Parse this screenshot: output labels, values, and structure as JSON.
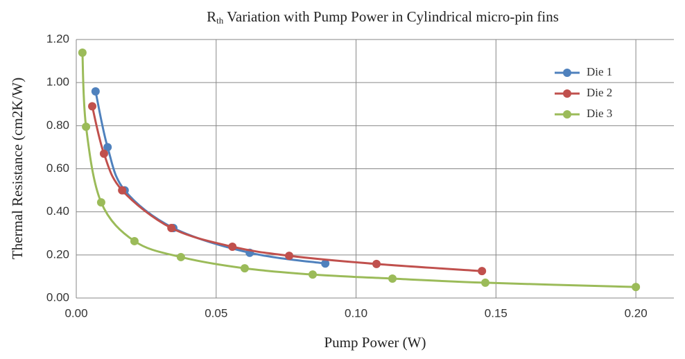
{
  "chart_data": {
    "type": "scatter",
    "title": {
      "main": "R",
      "subscript": "th",
      "rest": " Variation with Pump Power in Cylindrical micro-pin fins"
    },
    "x_label": "Pump Power (W)",
    "y_label": "Thermal Resistance (cm2K/W)",
    "xlim": [
      0,
      0.2136
    ],
    "ylim": [
      0,
      1.2
    ],
    "xticks": [
      {
        "value": 0,
        "label": "0.00"
      },
      {
        "value": 0.05,
        "label": "0.05"
      },
      {
        "value": 0.1,
        "label": "0.10"
      },
      {
        "value": 0.15,
        "label": "0.15"
      },
      {
        "value": 0.2,
        "label": "0.20"
      }
    ],
    "yticks": [
      {
        "value": 0,
        "label": "0.00"
      },
      {
        "value": 0.2,
        "label": "0.20"
      },
      {
        "value": 0.4,
        "label": "0.40"
      },
      {
        "value": 0.6,
        "label": "0.60"
      },
      {
        "value": 0.8,
        "label": "0.80"
      },
      {
        "value": 1.0,
        "label": "1.00"
      },
      {
        "value": 1.2,
        "label": "1.20"
      }
    ],
    "grid": true,
    "smooth": true,
    "legend": "upper-right",
    "series": [
      {
        "name": "Die 1",
        "color": "#4f81bd",
        "x": [
          0.0069,
          0.0112,
          0.0173,
          0.0347,
          0.062,
          0.089
        ],
        "values": [
          0.959,
          0.7,
          0.5,
          0.325,
          0.21,
          0.16
        ]
      },
      {
        "name": "Die 2",
        "color": "#c0504d",
        "x": [
          0.0057,
          0.0099,
          0.0164,
          0.034,
          0.0558,
          0.0761,
          0.1073,
          0.145
        ],
        "values": [
          0.89,
          0.67,
          0.5,
          0.325,
          0.238,
          0.196,
          0.158,
          0.125
        ]
      },
      {
        "name": "Die 3",
        "color": "#9bbb59",
        "x": [
          0.0022,
          0.0035,
          0.0089,
          0.0208,
          0.0374,
          0.0602,
          0.0845,
          0.113,
          0.1462,
          0.2
        ],
        "values": [
          1.139,
          0.795,
          0.444,
          0.264,
          0.19,
          0.138,
          0.109,
          0.09,
          0.071,
          0.051
        ]
      }
    ]
  }
}
